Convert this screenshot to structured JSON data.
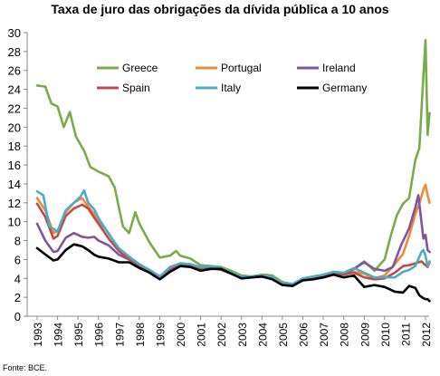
{
  "chart_data": {
    "type": "line",
    "title": "Taxa de juro das obrigações da dívida pública a 10 anos",
    "source": "Fonte: BCE.",
    "xlabel": "",
    "ylabel": "",
    "x_ticks": [
      "1993",
      "1994",
      "1995",
      "1996",
      "1997",
      "1998",
      "1999",
      "2000",
      "2001",
      "2002",
      "2003",
      "2004",
      "2005",
      "2006",
      "2007",
      "2008",
      "2009",
      "2010",
      "2011",
      "2012"
    ],
    "y_ticks": [
      "0",
      "2",
      "4",
      "6",
      "8",
      "10",
      "12",
      "14",
      "16",
      "18",
      "20",
      "22",
      "24",
      "26",
      "28",
      "30"
    ],
    "xlim": [
      1993,
      2012
    ],
    "ylim": [
      0,
      30
    ],
    "grid": false,
    "legend": "inside-top",
    "series": [
      {
        "name": "Greece",
        "color": "#77AC48",
        "points": [
          [
            1993,
            24.4
          ],
          [
            1993.4,
            24.3
          ],
          [
            1993.7,
            22.5
          ],
          [
            1994,
            22.2
          ],
          [
            1994.3,
            20.0
          ],
          [
            1994.6,
            21.6
          ],
          [
            1994.9,
            19.0
          ],
          [
            1995.3,
            17.5
          ],
          [
            1995.6,
            15.8
          ],
          [
            1996,
            15.3
          ],
          [
            1996.5,
            14.8
          ],
          [
            1996.8,
            13.6
          ],
          [
            1997,
            11.5
          ],
          [
            1997.2,
            9.5
          ],
          [
            1997.5,
            8.8
          ],
          [
            1997.8,
            11.0
          ],
          [
            1998,
            9.8
          ],
          [
            1998.5,
            7.8
          ],
          [
            1999,
            6.2
          ],
          [
            1999.5,
            6.4
          ],
          [
            1999.8,
            6.9
          ],
          [
            2000,
            6.4
          ],
          [
            2000.5,
            6.1
          ],
          [
            2001,
            5.4
          ],
          [
            2001.5,
            5.3
          ],
          [
            2002,
            5.2
          ],
          [
            2002.5,
            4.8
          ],
          [
            2003,
            4.3
          ],
          [
            2003.5,
            4.2
          ],
          [
            2004,
            4.4
          ],
          [
            2004.5,
            4.3
          ],
          [
            2005,
            3.6
          ],
          [
            2005.5,
            3.4
          ],
          [
            2006,
            4.0
          ],
          [
            2006.5,
            4.1
          ],
          [
            2007,
            4.3
          ],
          [
            2007.5,
            4.6
          ],
          [
            2008,
            4.5
          ],
          [
            2008.5,
            5.0
          ],
          [
            2009,
            5.8
          ],
          [
            2009.5,
            4.8
          ],
          [
            2010,
            6.0
          ],
          [
            2010.3,
            8.5
          ],
          [
            2010.6,
            10.7
          ],
          [
            2010.9,
            11.9
          ],
          [
            2011.2,
            12.5
          ],
          [
            2011.5,
            16.5
          ],
          [
            2011.7,
            17.8
          ],
          [
            2011.9,
            25.5
          ],
          [
            2012,
            29.2
          ],
          [
            2012.1,
            19.2
          ],
          [
            2012.2,
            21.5
          ]
        ]
      },
      {
        "name": "Portugal",
        "color": "#F0883A",
        "points": [
          [
            1993,
            12.5
          ],
          [
            1993.4,
            11.2
          ],
          [
            1993.8,
            8.8
          ],
          [
            1994,
            9.0
          ],
          [
            1994.4,
            11.0
          ],
          [
            1994.8,
            12.0
          ],
          [
            1995.2,
            12.5
          ],
          [
            1995.5,
            11.6
          ],
          [
            1995.8,
            10.8
          ],
          [
            1996,
            10.1
          ],
          [
            1996.5,
            8.8
          ],
          [
            1997,
            7.0
          ],
          [
            1997.5,
            6.2
          ],
          [
            1998,
            5.4
          ],
          [
            1998.5,
            4.9
          ],
          [
            1999,
            4.2
          ],
          [
            1999.5,
            5.0
          ],
          [
            2000,
            5.6
          ],
          [
            2000.5,
            5.4
          ],
          [
            2001,
            5.0
          ],
          [
            2001.5,
            5.1
          ],
          [
            2002,
            5.0
          ],
          [
            2002.5,
            4.6
          ],
          [
            2003,
            4.1
          ],
          [
            2003.5,
            4.1
          ],
          [
            2004,
            4.3
          ],
          [
            2004.5,
            4.1
          ],
          [
            2005,
            3.4
          ],
          [
            2005.5,
            3.3
          ],
          [
            2006,
            3.9
          ],
          [
            2006.5,
            4.0
          ],
          [
            2007,
            4.2
          ],
          [
            2007.5,
            4.5
          ],
          [
            2008,
            4.4
          ],
          [
            2008.5,
            4.7
          ],
          [
            2009,
            4.5
          ],
          [
            2009.5,
            4.0
          ],
          [
            2010,
            4.3
          ],
          [
            2010.5,
            5.5
          ],
          [
            2010.9,
            6.6
          ],
          [
            2011.2,
            8.5
          ],
          [
            2011.5,
            10.8
          ],
          [
            2011.7,
            11.9
          ],
          [
            2011.9,
            13.4
          ],
          [
            2012,
            13.9
          ],
          [
            2012.1,
            12.8
          ],
          [
            2012.2,
            12.0
          ]
        ]
      },
      {
        "name": "Ireland",
        "color": "#7F559E",
        "points": [
          [
            1993,
            9.8
          ],
          [
            1993.4,
            8.0
          ],
          [
            1993.8,
            6.8
          ],
          [
            1994,
            6.9
          ],
          [
            1994.4,
            8.3
          ],
          [
            1994.8,
            8.8
          ],
          [
            1995.2,
            8.4
          ],
          [
            1995.5,
            8.3
          ],
          [
            1995.8,
            8.4
          ],
          [
            1996,
            8.0
          ],
          [
            1996.5,
            7.5
          ],
          [
            1997,
            6.5
          ],
          [
            1997.5,
            6.0
          ],
          [
            1998,
            5.5
          ],
          [
            1998.5,
            4.8
          ],
          [
            1999,
            4.2
          ],
          [
            1999.5,
            5.0
          ],
          [
            2000,
            5.5
          ],
          [
            2000.5,
            5.4
          ],
          [
            2001,
            5.0
          ],
          [
            2001.5,
            5.1
          ],
          [
            2002,
            5.0
          ],
          [
            2002.5,
            4.6
          ],
          [
            2003,
            4.1
          ],
          [
            2003.5,
            4.1
          ],
          [
            2004,
            4.3
          ],
          [
            2004.5,
            4.1
          ],
          [
            2005,
            3.4
          ],
          [
            2005.5,
            3.3
          ],
          [
            2006,
            3.8
          ],
          [
            2006.5,
            4.0
          ],
          [
            2007,
            4.3
          ],
          [
            2007.5,
            4.5
          ],
          [
            2008,
            4.5
          ],
          [
            2008.5,
            5.0
          ],
          [
            2009,
            5.7
          ],
          [
            2009.5,
            5.0
          ],
          [
            2010,
            4.8
          ],
          [
            2010.4,
            5.2
          ],
          [
            2010.8,
            7.5
          ],
          [
            2011.2,
            9.3
          ],
          [
            2011.5,
            11.5
          ],
          [
            2011.65,
            12.8
          ],
          [
            2011.8,
            10.0
          ],
          [
            2011.9,
            8.2
          ],
          [
            2012,
            8.6
          ],
          [
            2012.1,
            7.0
          ],
          [
            2012.2,
            6.8
          ]
        ]
      },
      {
        "name": "Spain",
        "color": "#BE4B48",
        "points": [
          [
            1993,
            11.9
          ],
          [
            1993.4,
            10.5
          ],
          [
            1993.8,
            8.2
          ],
          [
            1994,
            8.5
          ],
          [
            1994.4,
            10.6
          ],
          [
            1994.8,
            11.4
          ],
          [
            1995.2,
            11.8
          ],
          [
            1995.5,
            11.4
          ],
          [
            1995.8,
            10.4
          ],
          [
            1996,
            9.8
          ],
          [
            1996.5,
            8.2
          ],
          [
            1997,
            6.9
          ],
          [
            1997.5,
            6.0
          ],
          [
            1998,
            5.3
          ],
          [
            1998.5,
            4.8
          ],
          [
            1999,
            4.1
          ],
          [
            1999.5,
            5.0
          ],
          [
            2000,
            5.5
          ],
          [
            2000.5,
            5.3
          ],
          [
            2001,
            5.0
          ],
          [
            2001.5,
            5.1
          ],
          [
            2002,
            4.9
          ],
          [
            2002.5,
            4.5
          ],
          [
            2003,
            4.1
          ],
          [
            2003.5,
            4.1
          ],
          [
            2004,
            4.2
          ],
          [
            2004.5,
            4.0
          ],
          [
            2005,
            3.3
          ],
          [
            2005.5,
            3.2
          ],
          [
            2006,
            3.9
          ],
          [
            2006.5,
            4.0
          ],
          [
            2007,
            4.2
          ],
          [
            2007.5,
            4.5
          ],
          [
            2008,
            4.4
          ],
          [
            2008.5,
            4.6
          ],
          [
            2009,
            4.1
          ],
          [
            2009.5,
            3.9
          ],
          [
            2010,
            4.0
          ],
          [
            2010.5,
            4.6
          ],
          [
            2010.9,
            5.3
          ],
          [
            2011.2,
            5.4
          ],
          [
            2011.5,
            5.6
          ],
          [
            2011.8,
            5.8
          ],
          [
            2012,
            5.4
          ],
          [
            2012.1,
            5.2
          ],
          [
            2012.2,
            5.7
          ]
        ]
      },
      {
        "name": "Italy",
        "color": "#4BACC6",
        "points": [
          [
            1993,
            13.2
          ],
          [
            1993.3,
            12.8
          ],
          [
            1993.6,
            9.5
          ],
          [
            1994,
            9.0
          ],
          [
            1994.4,
            11.2
          ],
          [
            1994.8,
            12.0
          ],
          [
            1995.1,
            12.6
          ],
          [
            1995.3,
            13.3
          ],
          [
            1995.5,
            12.0
          ],
          [
            1995.8,
            11.3
          ],
          [
            1996,
            10.4
          ],
          [
            1996.5,
            8.7
          ],
          [
            1997,
            7.2
          ],
          [
            1997.5,
            6.3
          ],
          [
            1998,
            5.5
          ],
          [
            1998.5,
            4.9
          ],
          [
            1999,
            4.2
          ],
          [
            1999.5,
            5.2
          ],
          [
            2000,
            5.6
          ],
          [
            2000.5,
            5.5
          ],
          [
            2001,
            5.2
          ],
          [
            2001.5,
            5.3
          ],
          [
            2002,
            5.1
          ],
          [
            2002.5,
            4.6
          ],
          [
            2003,
            4.2
          ],
          [
            2003.5,
            4.2
          ],
          [
            2004,
            4.3
          ],
          [
            2004.5,
            4.1
          ],
          [
            2005,
            3.5
          ],
          [
            2005.5,
            3.4
          ],
          [
            2006,
            4.0
          ],
          [
            2006.5,
            4.2
          ],
          [
            2007,
            4.4
          ],
          [
            2007.5,
            4.7
          ],
          [
            2008,
            4.6
          ],
          [
            2008.5,
            5.1
          ],
          [
            2009,
            4.6
          ],
          [
            2009.5,
            4.1
          ],
          [
            2010,
            4.1
          ],
          [
            2010.5,
            4.1
          ],
          [
            2010.9,
            4.7
          ],
          [
            2011.2,
            4.9
          ],
          [
            2011.5,
            5.3
          ],
          [
            2011.8,
            6.8
          ],
          [
            2011.9,
            7.0
          ],
          [
            2012,
            6.4
          ],
          [
            2012.1,
            5.3
          ],
          [
            2012.2,
            5.8
          ]
        ]
      },
      {
        "name": "Germany",
        "color": "#000000",
        "points": [
          [
            1993,
            7.2
          ],
          [
            1993.3,
            6.7
          ],
          [
            1993.8,
            5.9
          ],
          [
            1994,
            6.0
          ],
          [
            1994.4,
            7.0
          ],
          [
            1994.8,
            7.6
          ],
          [
            1995.2,
            7.4
          ],
          [
            1995.5,
            7.0
          ],
          [
            1995.8,
            6.5
          ],
          [
            1996,
            6.3
          ],
          [
            1996.5,
            6.1
          ],
          [
            1997,
            5.7
          ],
          [
            1997.5,
            5.7
          ],
          [
            1998,
            5.1
          ],
          [
            1998.5,
            4.6
          ],
          [
            1999,
            3.9
          ],
          [
            1999.5,
            4.7
          ],
          [
            2000,
            5.3
          ],
          [
            2000.5,
            5.2
          ],
          [
            2001,
            4.8
          ],
          [
            2001.5,
            5.0
          ],
          [
            2002,
            5.0
          ],
          [
            2002.5,
            4.5
          ],
          [
            2003,
            4.0
          ],
          [
            2003.5,
            4.1
          ],
          [
            2004,
            4.2
          ],
          [
            2004.5,
            3.9
          ],
          [
            2005,
            3.3
          ],
          [
            2005.5,
            3.2
          ],
          [
            2006,
            3.8
          ],
          [
            2006.5,
            3.9
          ],
          [
            2007,
            4.1
          ],
          [
            2007.5,
            4.4
          ],
          [
            2008,
            4.1
          ],
          [
            2008.5,
            4.3
          ],
          [
            2009,
            3.1
          ],
          [
            2009.5,
            3.3
          ],
          [
            2010,
            3.1
          ],
          [
            2010.5,
            2.6
          ],
          [
            2010.9,
            2.5
          ],
          [
            2011.2,
            3.2
          ],
          [
            2011.5,
            3.0
          ],
          [
            2011.7,
            2.2
          ],
          [
            2011.9,
            1.9
          ],
          [
            2012,
            1.8
          ],
          [
            2012.1,
            1.8
          ],
          [
            2012.2,
            1.6
          ]
        ]
      }
    ]
  }
}
